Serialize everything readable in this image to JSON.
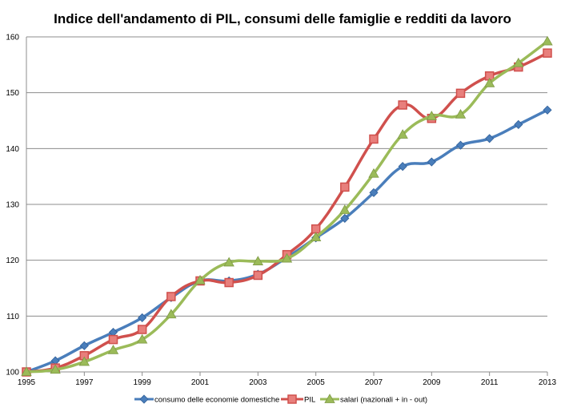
{
  "chart_data": {
    "type": "line",
    "title": "Indice dell'andamento di PIL, consumi delle famiglie e redditi da lavoro",
    "xlabel": "",
    "ylabel": "",
    "x": [
      1995,
      1996,
      1997,
      1998,
      1999,
      2000,
      2001,
      2002,
      2003,
      2004,
      2005,
      2006,
      2007,
      2008,
      2009,
      2010,
      2011,
      2012,
      2013
    ],
    "xticks": [
      "1995",
      "1997",
      "1999",
      "2001",
      "2003",
      "2005",
      "2007",
      "2009",
      "2011",
      "2013"
    ],
    "yticks": [
      "100",
      "110",
      "120",
      "130",
      "140",
      "150",
      "160"
    ],
    "xlim": [
      1995,
      2013
    ],
    "ylim": [
      100,
      160
    ],
    "grid": true,
    "legend_position": "bottom",
    "series": [
      {
        "name": "consumo delle economie domestiche",
        "color": "#4a7ebb",
        "marker": "diamond",
        "values": [
          100,
          102,
          104.7,
          107.1,
          109.7,
          113.3,
          116.3,
          116.3,
          117.5,
          120.5,
          124.0,
          127.5,
          132.1,
          136.8,
          137.6,
          140.6,
          141.8,
          144.3,
          146.9
        ]
      },
      {
        "name": "PIL",
        "color": "#d0504d",
        "marker": "square",
        "values": [
          100,
          100.7,
          102.9,
          105.8,
          107.6,
          113.5,
          116.3,
          116.0,
          117.3,
          121.0,
          125.6,
          133.1,
          141.7,
          147.8,
          145.4,
          149.9,
          153.0,
          154.6,
          157.1
        ]
      },
      {
        "name": "salari (nazionali + in - out)",
        "color": "#9bbb59",
        "marker": "triangle",
        "values": [
          100,
          100.4,
          101.8,
          103.9,
          105.8,
          110.3,
          116.4,
          119.6,
          119.8,
          120.3,
          124.1,
          129.0,
          135.5,
          142.5,
          145.8,
          146.1,
          151.7,
          155.3,
          159.2
        ]
      }
    ]
  }
}
